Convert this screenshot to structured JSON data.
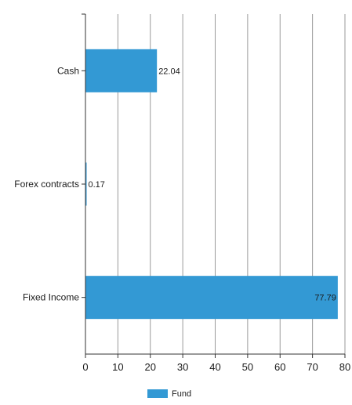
{
  "chart_data": {
    "type": "bar",
    "orientation": "horizontal",
    "title": "",
    "xlabel": "",
    "ylabel": "",
    "categories": [
      "Cash",
      "Forex contracts",
      "Fixed Income"
    ],
    "series": [
      {
        "name": "Fund",
        "color": "#3399d4",
        "values": [
          22.04,
          0.17,
          77.79
        ],
        "value_labels": [
          "22.04",
          "0.17",
          "77.79"
        ]
      }
    ],
    "xlim": [
      0,
      80
    ],
    "x_ticks": [
      0,
      10,
      20,
      30,
      40,
      50,
      60,
      70,
      80
    ],
    "x_tick_labels": [
      "0",
      "10",
      "20",
      "30",
      "40",
      "50",
      "60",
      "70",
      "80"
    ],
    "grid": true,
    "legend_position": "bottom-center"
  }
}
